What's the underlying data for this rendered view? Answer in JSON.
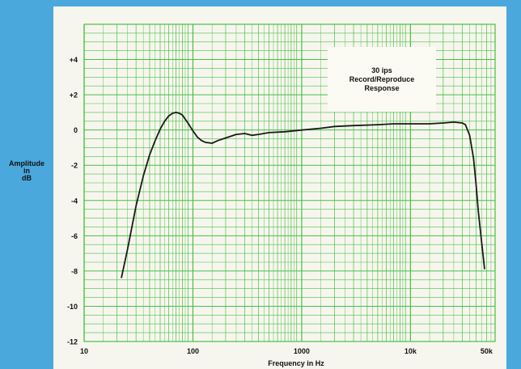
{
  "chart_data": {
    "type": "line",
    "title": "",
    "annotation_lines": [
      "30 ips",
      "Record/Reproduce",
      "Response"
    ],
    "xlabel": "Frequency in Hz",
    "ylabel_lines": [
      "Amplitude",
      "in",
      "dB"
    ],
    "x_scale": "log",
    "xlim": [
      10,
      60000
    ],
    "ylim": [
      -12,
      6
    ],
    "grid": true,
    "x_ticks": [
      {
        "value": 10,
        "label": "10"
      },
      {
        "value": 100,
        "label": "100"
      },
      {
        "value": 1000,
        "label": "1000"
      },
      {
        "value": 10000,
        "label": "10k"
      },
      {
        "value": 50000,
        "label": "50k"
      }
    ],
    "y_ticks": [
      {
        "value": 4,
        "label": "+4"
      },
      {
        "value": 2,
        "label": "+2"
      },
      {
        "value": 0,
        "label": "0"
      },
      {
        "value": -2,
        "label": "-2"
      },
      {
        "value": -4,
        "label": "-4"
      },
      {
        "value": -6,
        "label": "-6"
      },
      {
        "value": -8,
        "label": "-8"
      },
      {
        "value": -10,
        "label": "-10"
      },
      {
        "value": -12,
        "label": "-12"
      }
    ],
    "series": [
      {
        "x": [
          22,
          25,
          30,
          35,
          40,
          45,
          50,
          55,
          60,
          65,
          70,
          75,
          80,
          90,
          100,
          110,
          120,
          130,
          150,
          170,
          200,
          250,
          300,
          350,
          400,
          500,
          700,
          1000,
          1500,
          2000,
          3000,
          5000,
          7000,
          10000,
          15000,
          20000,
          25000,
          30000,
          32000,
          35000,
          38000,
          40000,
          42000,
          45000,
          48000
        ],
        "y": [
          -8.4,
          -6.8,
          -4.3,
          -2.6,
          -1.4,
          -0.6,
          0.05,
          0.5,
          0.8,
          0.95,
          1.0,
          0.95,
          0.85,
          0.4,
          -0.05,
          -0.4,
          -0.6,
          -0.7,
          -0.75,
          -0.6,
          -0.45,
          -0.25,
          -0.2,
          -0.3,
          -0.25,
          -0.15,
          -0.1,
          0.0,
          0.1,
          0.2,
          0.25,
          0.3,
          0.35,
          0.35,
          0.35,
          0.4,
          0.45,
          0.4,
          0.3,
          -0.3,
          -1.6,
          -3.0,
          -4.6,
          -6.3,
          -7.9
        ]
      }
    ],
    "colors": {
      "grid": "#46c043",
      "line": "#1a1a1a",
      "background": "#4aa8dc",
      "card": "#f7f6ee"
    }
  }
}
